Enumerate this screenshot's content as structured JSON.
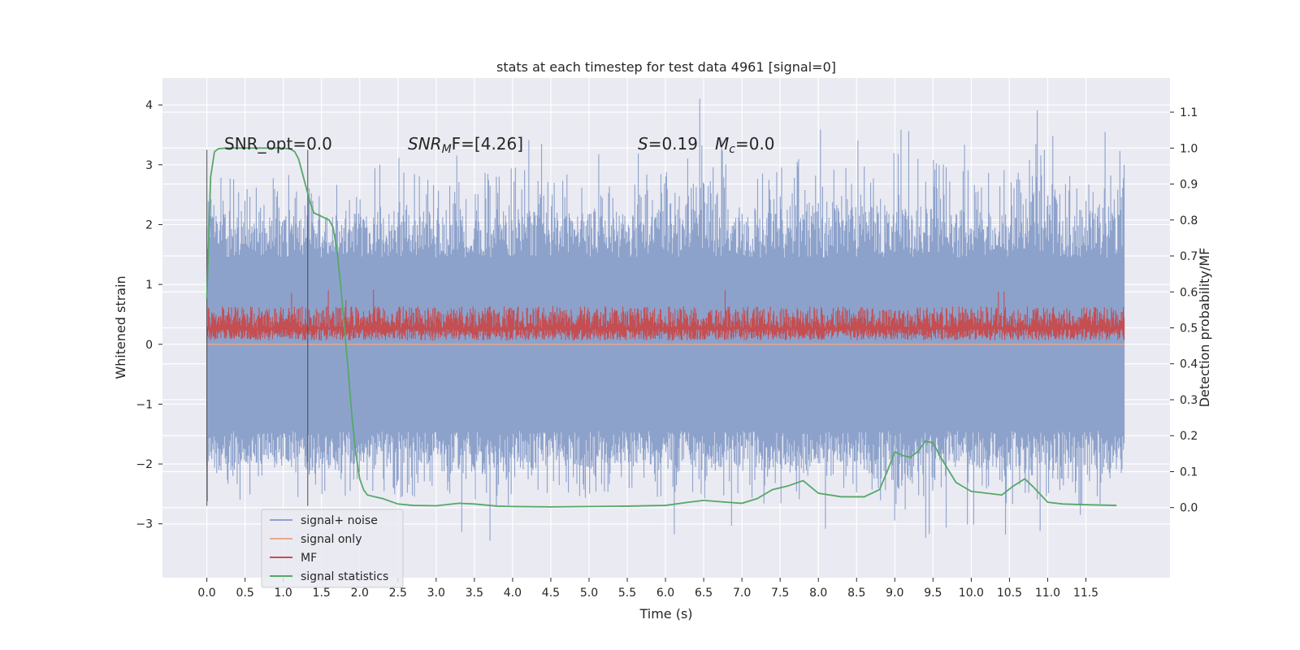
{
  "chart_data": {
    "type": "line",
    "title": "stats at each timestep for test data 4961 [signal=0]",
    "xlabel": "Time (s)",
    "ylabel_left": "Whitened strain",
    "ylabel_right": "Detection probability/MF",
    "xlim": [
      -0.58,
      12.6
    ],
    "ylim_left": [
      -3.9,
      4.45
    ],
    "ylim_right": [
      -0.195,
      1.195
    ],
    "x_ticks": [
      0.0,
      0.5,
      1.0,
      1.5,
      2.0,
      2.5,
      3.0,
      3.5,
      4.0,
      4.5,
      5.0,
      5.5,
      6.0,
      6.5,
      7.0,
      7.5,
      8.0,
      8.5,
      9.0,
      9.5,
      10.0,
      10.5,
      11.0,
      11.5
    ],
    "x_tick_labels": [
      "0.0",
      "0.5",
      "1.0",
      "1.5",
      "2.0",
      "2.5",
      "3.0",
      "3.5",
      "4.0",
      "4.5",
      "5.0",
      "5.5",
      "6.0",
      "6.5",
      "7.0",
      "7.5",
      "8.0",
      "8.5",
      "9.0",
      "9.5",
      "10.0",
      "10.5",
      "11.0",
      "11.5"
    ],
    "y_left_ticks": [
      -3,
      -2,
      -1,
      0,
      1,
      2,
      3,
      4
    ],
    "y_left_tick_labels": [
      "−3",
      "−2",
      "−1",
      "0",
      "1",
      "2",
      "3",
      "4"
    ],
    "y_right_ticks": [
      0.0,
      0.1,
      0.2,
      0.3,
      0.4,
      0.5,
      0.6,
      0.7,
      0.8,
      0.9,
      1.0,
      1.1
    ],
    "y_right_tick_labels": [
      "0.0",
      "0.1",
      "0.2",
      "0.3",
      "0.4",
      "0.5",
      "0.6",
      "0.7",
      "0.8",
      "0.9",
      "1.0",
      "1.1"
    ],
    "grid": true,
    "legend_position": "lower-left",
    "annotations": {
      "snr_opt": "SNR_opt=0.0",
      "snr_mf_main": "SNR",
      "snr_mf_sub": "M",
      "snr_mf_rest": "F=[4.26]",
      "s_main": "S",
      "s_rest": "=0.19",
      "mc_main": "M",
      "mc_sub": "c",
      "mc_rest": "=0.0"
    },
    "vertical_lines_x": [
      0.0,
      1.32
    ],
    "series": [
      {
        "name": "signal+ noise",
        "color": "#8da2cb",
        "axis": "left",
        "x_range": [
          0.0,
          12.0
        ],
        "envelope_lower": [
          -2.7,
          -2.6,
          -2.5,
          -2.8,
          -2.4,
          -2.6,
          -2.5,
          -2.7,
          -2.9,
          -2.5,
          -2.6,
          -2.4,
          -2.7,
          -2.6,
          -2.5,
          -2.8,
          -2.6,
          -2.5,
          -3.3,
          -2.6,
          -2.5,
          -2.7,
          -2.6,
          -2.9,
          -2.4
        ],
        "envelope_upper": [
          3.3,
          2.6,
          2.9,
          2.7,
          2.8,
          3.2,
          2.7,
          2.8,
          3.1,
          2.9,
          2.8,
          2.7,
          3.0,
          4.0,
          2.8,
          3.0,
          3.2,
          3.0,
          3.2,
          3.1,
          2.9,
          3.0,
          3.7,
          3.0,
          3.3
        ],
        "typical_half_width": 1.45,
        "min": -3.55,
        "max": 4.1
      },
      {
        "name": "signal only",
        "color": "#e8a88a",
        "axis": "left",
        "x": [
          0.0,
          12.0
        ],
        "y": [
          0.0,
          0.0
        ]
      },
      {
        "name": "MF",
        "color": "#c44e52",
        "axis": "right",
        "x_range": [
          0.0,
          12.0
        ],
        "baseline": 0.5,
        "band_low": 0.465,
        "band_high": 0.56,
        "spike_max": 0.62
      },
      {
        "name": "signal statistics",
        "color": "#55a868",
        "axis": "right",
        "x": [
          0.0,
          0.05,
          0.1,
          0.15,
          0.25,
          0.4,
          0.6,
          0.8,
          1.0,
          1.1,
          1.15,
          1.2,
          1.25,
          1.3,
          1.35,
          1.4,
          1.5,
          1.6,
          1.65,
          1.7,
          1.75,
          1.8,
          1.85,
          1.9,
          1.95,
          2.0,
          2.05,
          2.1,
          2.2,
          2.3,
          2.5,
          2.7,
          3.0,
          3.3,
          3.5,
          3.8,
          4.0,
          4.5,
          5.0,
          5.5,
          6.0,
          6.3,
          6.5,
          6.8,
          7.0,
          7.2,
          7.4,
          7.6,
          7.8,
          8.0,
          8.3,
          8.6,
          8.8,
          8.9,
          9.0,
          9.1,
          9.2,
          9.3,
          9.4,
          9.5,
          9.6,
          9.8,
          10.0,
          10.2,
          10.4,
          10.55,
          10.7,
          10.8,
          11.0,
          11.2,
          11.5,
          11.9
        ],
        "y": [
          0.58,
          0.92,
          0.99,
          0.998,
          1.0,
          1.0,
          1.0,
          1.0,
          1.0,
          0.997,
          0.99,
          0.97,
          0.93,
          0.89,
          0.85,
          0.82,
          0.81,
          0.8,
          0.78,
          0.72,
          0.62,
          0.5,
          0.38,
          0.25,
          0.15,
          0.08,
          0.05,
          0.035,
          0.03,
          0.025,
          0.01,
          0.006,
          0.005,
          0.012,
          0.01,
          0.004,
          0.003,
          0.002,
          0.003,
          0.004,
          0.006,
          0.015,
          0.02,
          0.015,
          0.012,
          0.025,
          0.05,
          0.06,
          0.075,
          0.04,
          0.03,
          0.03,
          0.05,
          0.1,
          0.155,
          0.145,
          0.14,
          0.155,
          0.185,
          0.18,
          0.14,
          0.07,
          0.045,
          0.04,
          0.035,
          0.06,
          0.08,
          0.06,
          0.015,
          0.01,
          0.008,
          0.006
        ]
      }
    ]
  }
}
